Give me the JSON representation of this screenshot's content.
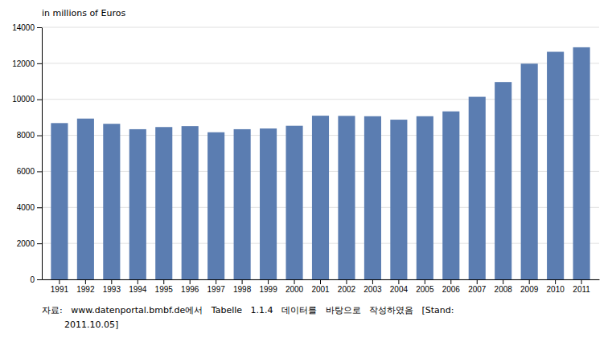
{
  "chart_data": {
    "type": "bar",
    "categories": [
      "1991",
      "1992",
      "1993",
      "1994",
      "1995",
      "1996",
      "1997",
      "1998",
      "1999",
      "2000",
      "2001",
      "2002",
      "2003",
      "2004",
      "2005",
      "2006",
      "2007",
      "2008",
      "2009",
      "2010",
      "2011"
    ],
    "values": [
      8680,
      8930,
      8640,
      8340,
      8460,
      8510,
      8170,
      8340,
      8380,
      8530,
      9090,
      9080,
      9060,
      8870,
      9060,
      9330,
      10140,
      10960,
      11980,
      12640,
      12890
    ],
    "color": "#5B7DB1",
    "ylabel": "in millions of Euros",
    "ylim": [
      0,
      14000
    ],
    "yticks": [
      0,
      2000,
      4000,
      6000,
      8000,
      10000,
      12000,
      14000
    ],
    "grid": true,
    "annotations": [
      "자료:   www.datenportal.bmbf.de에서   Tabelle   1.1.4   데이터를   바탕으로   작성하였음   [Stand:",
      "        2011.10.05]"
    ]
  }
}
